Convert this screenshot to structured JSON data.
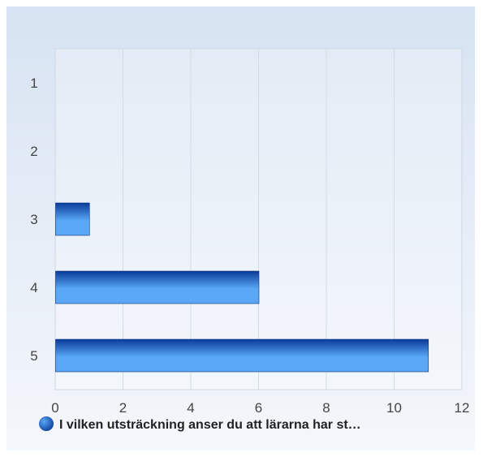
{
  "chart_data": {
    "type": "bar",
    "orientation": "horizontal",
    "categories": [
      "1",
      "2",
      "3",
      "4",
      "5"
    ],
    "series": [
      {
        "name": "I vilken utsträckning anser du att lärarna har st…",
        "values": [
          0,
          0,
          1,
          6,
          11
        ]
      }
    ],
    "xlim": [
      0,
      12
    ],
    "x_ticks": [
      0,
      2,
      4,
      6,
      8,
      10,
      12
    ],
    "grid": true,
    "legend_position": "bottom",
    "title": "",
    "xlabel": "",
    "ylabel": ""
  },
  "colors": {
    "bar_dark": "#0a3a9a",
    "bar_light": "#5aa8f5",
    "plot_bg_top": "#d7e3f2",
    "plot_bg_bottom": "#f4f7fb",
    "grid": "#d4dbe4"
  }
}
